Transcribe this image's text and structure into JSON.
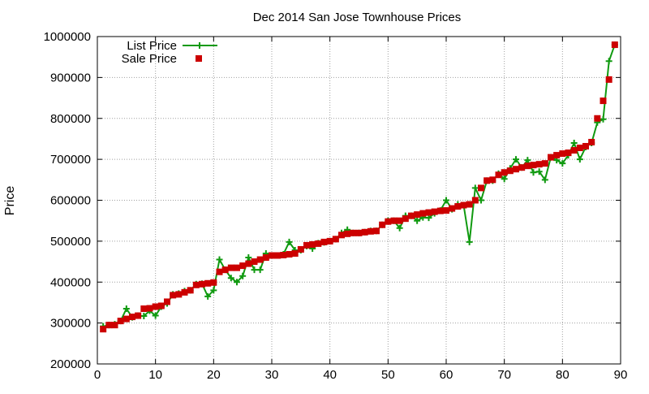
{
  "chart_data": {
    "type": "line",
    "title": "Dec 2014 San Jose Townhouse Prices",
    "xlabel": "",
    "ylabel": "Price",
    "xlim": [
      0,
      90
    ],
    "ylim": [
      200000,
      1000000
    ],
    "xticks": [
      0,
      10,
      20,
      30,
      40,
      50,
      60,
      70,
      80,
      90
    ],
    "yticks": [
      200000,
      300000,
      400000,
      500000,
      600000,
      700000,
      800000,
      900000,
      1000000
    ],
    "grid": true,
    "legend_position": "top-left",
    "x": [
      1,
      2,
      3,
      4,
      5,
      6,
      7,
      8,
      9,
      10,
      11,
      12,
      13,
      14,
      15,
      16,
      17,
      18,
      19,
      20,
      21,
      22,
      23,
      24,
      25,
      26,
      27,
      28,
      29,
      30,
      31,
      32,
      33,
      34,
      35,
      36,
      37,
      38,
      39,
      40,
      41,
      42,
      43,
      44,
      45,
      46,
      47,
      48,
      49,
      50,
      51,
      52,
      53,
      54,
      55,
      56,
      57,
      58,
      59,
      60,
      61,
      62,
      63,
      64,
      65,
      66,
      67,
      68,
      69,
      70,
      71,
      72,
      73,
      74,
      75,
      76,
      77,
      78,
      79,
      80,
      81,
      82,
      83,
      84,
      85,
      86,
      87,
      88,
      89
    ],
    "series": [
      {
        "name": "List Price",
        "color": "#109a10",
        "marker": "plus",
        "style": "line",
        "values": [
          292000,
          295000,
          297000,
          305000,
          335000,
          314000,
          318000,
          317000,
          330000,
          318000,
          340000,
          348000,
          370000,
          372000,
          378000,
          380000,
          395000,
          396000,
          365000,
          380000,
          455000,
          430000,
          410000,
          400000,
          415000,
          460000,
          430000,
          430000,
          470000,
          465000,
          465000,
          468000,
          498000,
          478000,
          478000,
          488000,
          482000,
          495000,
          497000,
          500000,
          505000,
          520000,
          528000,
          520000,
          520000,
          522000,
          525000,
          525000,
          540000,
          550000,
          550000,
          532000,
          562000,
          562000,
          550000,
          558000,
          557000,
          568000,
          575000,
          600000,
          578000,
          590000,
          588000,
          498000,
          630000,
          600000,
          648000,
          648000,
          665000,
          652000,
          678000,
          700000,
          680000,
          698000,
          668000,
          670000,
          650000,
          705000,
          698000,
          690000,
          710000,
          740000,
          700000,
          730000,
          740000,
          790000,
          798000,
          940000,
          980000
        ]
      },
      {
        "name": "Sale Price",
        "color": "#cc0000",
        "marker": "square",
        "style": "points",
        "values": [
          285000,
          295000,
          295000,
          305000,
          310000,
          315000,
          318000,
          335000,
          336000,
          340000,
          342000,
          352000,
          368000,
          370000,
          375000,
          380000,
          393000,
          395000,
          397000,
          399000,
          425000,
          430000,
          435000,
          435000,
          440000,
          445000,
          450000,
          455000,
          460000,
          465000,
          465000,
          466000,
          468000,
          470000,
          480000,
          490000,
          492000,
          494000,
          498000,
          500000,
          505000,
          515000,
          518000,
          520000,
          520000,
          522000,
          524000,
          525000,
          540000,
          548000,
          550000,
          550000,
          555000,
          562000,
          565000,
          568000,
          570000,
          572000,
          574000,
          575000,
          580000,
          585000,
          588000,
          590000,
          600000,
          630000,
          648000,
          650000,
          662000,
          668000,
          672000,
          676000,
          680000,
          684000,
          686000,
          688000,
          690000,
          705000,
          710000,
          714000,
          716000,
          722000,
          728000,
          732000,
          742000,
          800000,
          843000,
          895000,
          980000
        ]
      }
    ]
  }
}
